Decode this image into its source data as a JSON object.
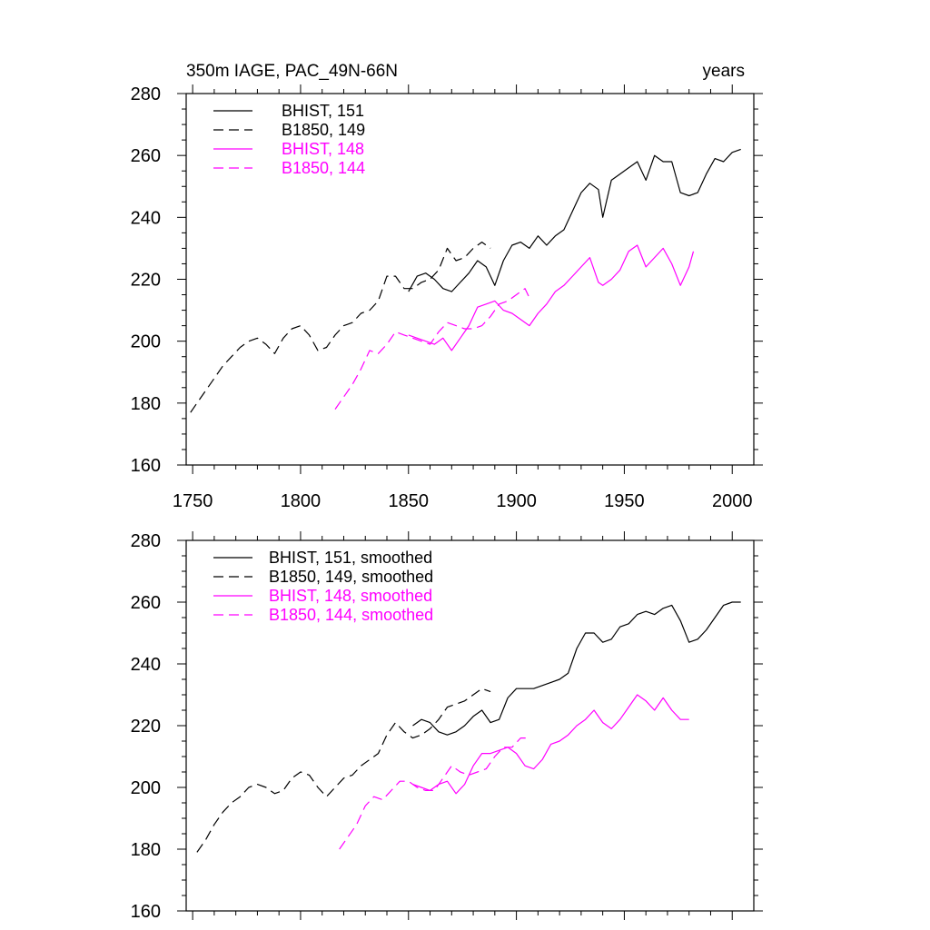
{
  "chart_data": [
    {
      "type": "line",
      "title": "350m IAGE, PAC_49N-66N",
      "units": "years",
      "xlim": [
        1747,
        2010
      ],
      "ylim": [
        160,
        280
      ],
      "xticks": [
        1750,
        1800,
        1850,
        1900,
        1950,
        2000
      ],
      "xtick_labels": [
        "1750",
        "1800",
        "1850",
        "1900",
        "1950",
        "2000"
      ],
      "yticks": [
        160,
        180,
        200,
        220,
        240,
        260,
        280
      ],
      "ytick_labels": [
        "160",
        "180",
        "200",
        "220",
        "240",
        "260",
        "280"
      ],
      "legend_position": "top-left",
      "series": [
        {
          "name": "BHIST, 151",
          "color": "#000000",
          "dash": "solid",
          "x": [
            1850,
            1854,
            1858,
            1862,
            1866,
            1870,
            1874,
            1878,
            1882,
            1886,
            1890,
            1894,
            1898,
            1902,
            1906,
            1910,
            1914,
            1918,
            1922,
            1926,
            1930,
            1934,
            1938,
            1940,
            1944,
            1948,
            1952,
            1956,
            1960,
            1964,
            1968,
            1972,
            1976,
            1980,
            1984,
            1988,
            1992,
            1996,
            2000,
            2004
          ],
          "y": [
            216,
            221,
            222,
            220,
            217,
            216,
            219,
            222,
            226,
            224,
            218,
            226,
            231,
            232,
            230,
            234,
            231,
            234,
            236,
            242,
            248,
            251,
            249,
            240,
            252,
            254,
            256,
            258,
            252,
            260,
            258,
            258,
            248,
            247,
            248,
            254,
            259,
            258,
            261,
            262
          ]
        },
        {
          "name": "B1850, 149",
          "color": "#000000",
          "dash": "dashed",
          "x": [
            1749,
            1752,
            1756,
            1760,
            1764,
            1768,
            1772,
            1776,
            1780,
            1784,
            1788,
            1792,
            1796,
            1800,
            1804,
            1808,
            1812,
            1816,
            1820,
            1824,
            1828,
            1832,
            1836,
            1840,
            1844,
            1848,
            1852,
            1856,
            1860,
            1864,
            1868,
            1872,
            1876,
            1880,
            1884,
            1888
          ],
          "y": [
            177,
            180,
            184,
            188,
            192,
            195,
            198,
            200,
            201,
            199,
            196,
            201,
            204,
            205,
            202,
            197,
            198,
            202,
            205,
            206,
            209,
            210,
            213,
            221,
            221,
            217,
            217,
            219,
            220,
            223,
            230,
            226,
            227,
            230,
            232,
            230
          ]
        },
        {
          "name": "BHIST, 148",
          "color": "#ff00ff",
          "dash": "solid",
          "x": [
            1850,
            1854,
            1858,
            1862,
            1866,
            1870,
            1874,
            1878,
            1882,
            1886,
            1890,
            1894,
            1898,
            1902,
            1906,
            1910,
            1914,
            1918,
            1922,
            1926,
            1930,
            1934,
            1938,
            1940,
            1944,
            1948,
            1952,
            1956,
            1960,
            1964,
            1968,
            1972,
            1976,
            1980,
            1982
          ],
          "y": [
            202,
            201,
            200,
            199,
            201,
            197,
            201,
            205,
            211,
            212,
            213,
            210,
            209,
            207,
            205,
            209,
            212,
            216,
            218,
            221,
            224,
            227,
            219,
            218,
            220,
            223,
            229,
            231,
            224,
            227,
            230,
            225,
            218,
            224,
            229
          ]
        },
        {
          "name": "B1850, 144",
          "color": "#ff00ff",
          "dash": "dashed",
          "x": [
            1816,
            1820,
            1824,
            1828,
            1832,
            1836,
            1840,
            1844,
            1848,
            1852,
            1856,
            1860,
            1864,
            1868,
            1872,
            1876,
            1880,
            1884,
            1888,
            1892,
            1896,
            1900,
            1904,
            1906
          ],
          "y": [
            178,
            182,
            186,
            191,
            197,
            196,
            199,
            203,
            202,
            201,
            200,
            199,
            203,
            206,
            205,
            204,
            204,
            205,
            208,
            212,
            213,
            215,
            217,
            214
          ]
        }
      ]
    },
    {
      "type": "line",
      "xlim": [
        1747,
        2010
      ],
      "ylim": [
        160,
        280
      ],
      "xticks": [
        1750,
        1800,
        1850,
        1900,
        1950,
        2000
      ],
      "yticks": [
        160,
        180,
        200,
        220,
        240,
        260,
        280
      ],
      "ytick_labels": [
        "160",
        "180",
        "200",
        "220",
        "240",
        "260",
        "280"
      ],
      "legend_position": "top-left",
      "series": [
        {
          "name": "BHIST, 151, smoothed",
          "color": "#000000",
          "dash": "solid",
          "x": [
            1852,
            1856,
            1860,
            1864,
            1868,
            1872,
            1876,
            1880,
            1884,
            1888,
            1892,
            1896,
            1900,
            1904,
            1908,
            1912,
            1916,
            1920,
            1924,
            1928,
            1932,
            1936,
            1940,
            1944,
            1948,
            1952,
            1956,
            1960,
            1964,
            1968,
            1972,
            1976,
            1980,
            1984,
            1988,
            1992,
            1996,
            2000,
            2004
          ],
          "y": [
            220,
            222,
            221,
            218,
            217,
            218,
            220,
            223,
            225,
            221,
            222,
            229,
            232,
            232,
            232,
            233,
            234,
            235,
            237,
            245,
            250,
            250,
            247,
            248,
            252,
            253,
            256,
            257,
            256,
            258,
            259,
            254,
            247,
            248,
            251,
            255,
            259,
            260,
            260
          ]
        },
        {
          "name": "B1850, 149, smoothed",
          "color": "#000000",
          "dash": "dashed",
          "x": [
            1752,
            1756,
            1760,
            1764,
            1768,
            1772,
            1776,
            1780,
            1784,
            1788,
            1792,
            1796,
            1800,
            1804,
            1808,
            1812,
            1816,
            1820,
            1824,
            1828,
            1832,
            1836,
            1840,
            1844,
            1848,
            1852,
            1856,
            1860,
            1864,
            1868,
            1872,
            1876,
            1880,
            1884,
            1888
          ],
          "y": [
            179,
            183,
            188,
            192,
            195,
            197,
            200,
            201,
            200,
            198,
            199,
            203,
            205,
            204,
            200,
            197,
            200,
            203,
            204,
            207,
            209,
            211,
            217,
            221,
            218,
            216,
            217,
            219,
            222,
            226,
            227,
            228,
            230,
            232,
            231
          ]
        },
        {
          "name": "BHIST, 148, smoothed",
          "color": "#ff00ff",
          "dash": "solid",
          "x": [
            1852,
            1856,
            1860,
            1864,
            1868,
            1872,
            1876,
            1880,
            1884,
            1888,
            1892,
            1896,
            1900,
            1904,
            1908,
            1912,
            1916,
            1920,
            1924,
            1928,
            1932,
            1936,
            1940,
            1944,
            1948,
            1952,
            1956,
            1960,
            1964,
            1968,
            1972,
            1976,
            1980
          ],
          "y": [
            201,
            200,
            199,
            201,
            202,
            198,
            201,
            207,
            211,
            211,
            212,
            213,
            211,
            207,
            206,
            209,
            214,
            215,
            217,
            220,
            222,
            225,
            221,
            219,
            222,
            226,
            230,
            228,
            225,
            229,
            225,
            222,
            222
          ]
        },
        {
          "name": "B1850, 144, smoothed",
          "color": "#ff00ff",
          "dash": "dashed",
          "x": [
            1818,
            1822,
            1826,
            1830,
            1834,
            1838,
            1842,
            1846,
            1850,
            1854,
            1858,
            1862,
            1866,
            1870,
            1874,
            1878,
            1882,
            1886,
            1890,
            1894,
            1898,
            1902,
            1906
          ],
          "y": [
            180,
            184,
            188,
            194,
            197,
            196,
            199,
            202,
            202,
            200,
            199,
            199,
            203,
            207,
            205,
            204,
            205,
            206,
            210,
            213,
            213,
            216,
            216
          ]
        }
      ]
    }
  ]
}
